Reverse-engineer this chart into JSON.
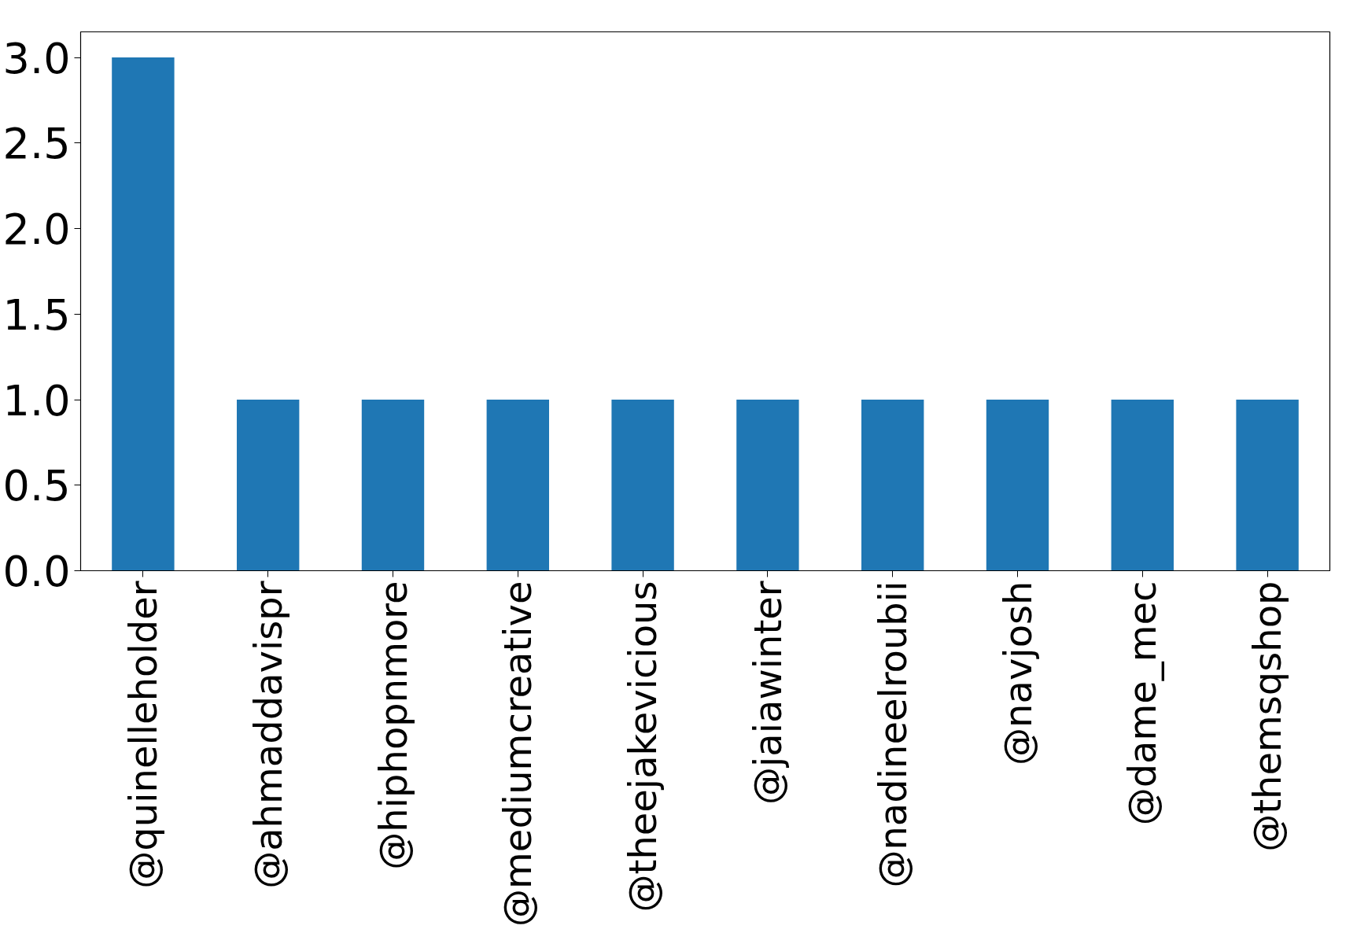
{
  "chart_data": {
    "type": "bar",
    "categories": [
      "@quinelleholder",
      "@ahmaddavispr",
      "@hiphopnmore",
      "@mediumcreative",
      "@theejakevicious",
      "@jaiawinter",
      "@nadineelroubii",
      "@navjosh",
      "@dame_mec",
      "@themsqshop"
    ],
    "values": [
      3,
      1,
      1,
      1,
      1,
      1,
      1,
      1,
      1,
      1
    ],
    "color": "#1f77b4",
    "ylim": [
      0,
      3.15
    ],
    "yticks": [
      {
        "value": 0,
        "label": "0.0"
      },
      {
        "value": 0.5,
        "label": "0.5"
      },
      {
        "value": 1,
        "label": "1.0"
      },
      {
        "value": 1.5,
        "label": "1.5"
      },
      {
        "value": 2,
        "label": "2.0"
      },
      {
        "value": 2.5,
        "label": "2.5"
      },
      {
        "value": 3,
        "label": "3.0"
      }
    ],
    "grid": false
  }
}
